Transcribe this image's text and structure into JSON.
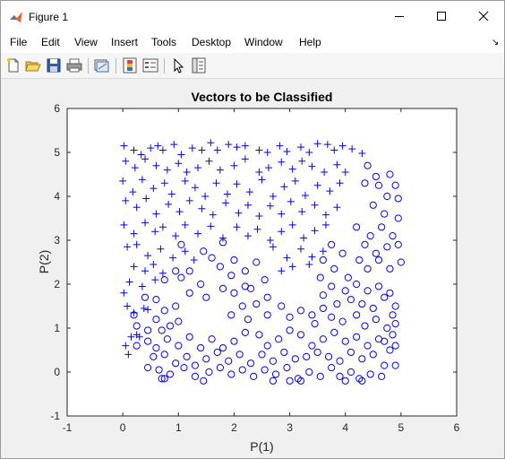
{
  "window": {
    "title": "Figure 1"
  },
  "menu": [
    "File",
    "Edit",
    "View",
    "Insert",
    "Tools",
    "Desktop",
    "Window",
    "Help"
  ],
  "toolbar_icons": [
    "new-figure-icon",
    "open-file-icon",
    "save-icon",
    "print-icon",
    "link-plot-icon",
    "insert-colorbar-icon",
    "insert-legend-icon",
    "select-arrow-icon",
    "property-inspector-icon"
  ],
  "chart_data": {
    "type": "scatter",
    "title": "Vectors to be Classified",
    "xlabel": "P(1)",
    "ylabel": "P(2)",
    "xlim": [
      -1,
      6
    ],
    "ylim": [
      -1,
      6
    ],
    "xticks": [
      "-1",
      "0",
      "1",
      "2",
      "3",
      "4",
      "5",
      "6"
    ],
    "yticks": [
      "-1",
      "0",
      "1",
      "2",
      "3",
      "4",
      "5",
      "6"
    ],
    "grid": false,
    "marker_color": "#0000ff",
    "series": [
      {
        "marker": "plus",
        "points": [
          [
            0.02,
            5.15
          ],
          [
            0.2,
            5.05
          ],
          [
            0.33,
            4.95
          ],
          [
            0.5,
            5.1
          ],
          [
            0.63,
            5.15
          ],
          [
            0.72,
            5.05
          ],
          [
            0.92,
            5.18
          ],
          [
            1.05,
            4.95
          ],
          [
            1.25,
            5.1
          ],
          [
            1.42,
            5.05
          ],
          [
            1.58,
            5.22
          ],
          [
            1.7,
            5.05
          ],
          [
            1.9,
            5.18
          ],
          [
            2.05,
            5.12
          ],
          [
            2.2,
            5.15
          ],
          [
            2.45,
            5.05
          ],
          [
            2.6,
            5.0
          ],
          [
            2.82,
            5.15
          ],
          [
            2.95,
            5.02
          ],
          [
            3.2,
            5.12
          ],
          [
            3.35,
            5.0
          ],
          [
            3.5,
            5.2
          ],
          [
            3.68,
            5.18
          ],
          [
            3.8,
            5.05
          ],
          [
            3.95,
            5.15
          ],
          [
            4.12,
            5.08
          ],
          [
            4.3,
            4.98
          ],
          [
            0.05,
            4.8
          ],
          [
            0.22,
            4.65
          ],
          [
            0.4,
            4.85
          ],
          [
            0.6,
            4.7
          ],
          [
            0.8,
            4.6
          ],
          [
            1.0,
            4.75
          ],
          [
            1.15,
            4.55
          ],
          [
            1.35,
            4.65
          ],
          [
            1.55,
            4.8
          ],
          [
            1.75,
            4.6
          ],
          [
            2.0,
            4.7
          ],
          [
            2.2,
            4.85
          ],
          [
            2.45,
            4.55
          ],
          [
            2.62,
            4.65
          ],
          [
            2.85,
            4.78
          ],
          [
            3.05,
            4.62
          ],
          [
            3.22,
            4.8
          ],
          [
            3.4,
            4.68
          ],
          [
            3.62,
            4.55
          ],
          [
            3.85,
            4.72
          ],
          [
            4.0,
            4.55
          ],
          [
            0.0,
            4.35
          ],
          [
            0.18,
            4.1
          ],
          [
            0.35,
            4.38
          ],
          [
            0.55,
            4.18
          ],
          [
            0.75,
            4.3
          ],
          [
            0.88,
            4.05
          ],
          [
            1.12,
            4.35
          ],
          [
            1.3,
            4.2
          ],
          [
            1.48,
            4.0
          ],
          [
            1.68,
            4.3
          ],
          [
            1.88,
            4.05
          ],
          [
            2.05,
            4.28
          ],
          [
            2.28,
            4.1
          ],
          [
            2.5,
            4.38
          ],
          [
            2.7,
            4.0
          ],
          [
            2.9,
            4.22
          ],
          [
            3.1,
            4.35
          ],
          [
            3.28,
            4.02
          ],
          [
            3.5,
            4.25
          ],
          [
            3.72,
            4.12
          ],
          [
            3.9,
            4.3
          ],
          [
            0.05,
            3.9
          ],
          [
            0.25,
            3.75
          ],
          [
            0.42,
            3.95
          ],
          [
            0.6,
            3.6
          ],
          [
            0.82,
            3.82
          ],
          [
            1.02,
            3.65
          ],
          [
            1.2,
            3.9
          ],
          [
            1.42,
            3.72
          ],
          [
            1.62,
            3.58
          ],
          [
            1.85,
            3.85
          ],
          [
            2.08,
            3.62
          ],
          [
            2.25,
            3.8
          ],
          [
            2.45,
            3.55
          ],
          [
            2.65,
            3.78
          ],
          [
            2.85,
            3.6
          ],
          [
            3.02,
            3.88
          ],
          [
            3.22,
            3.65
          ],
          [
            3.45,
            3.8
          ],
          [
            3.65,
            3.58
          ],
          [
            3.85,
            3.75
          ],
          [
            0.02,
            3.35
          ],
          [
            0.2,
            3.15
          ],
          [
            0.4,
            3.4
          ],
          [
            0.58,
            3.2
          ],
          [
            0.72,
            3.3
          ],
          [
            0.95,
            3.1
          ],
          [
            1.12,
            3.35
          ],
          [
            1.35,
            3.15
          ],
          [
            1.58,
            3.32
          ],
          [
            1.8,
            3.05
          ],
          [
            2.05,
            3.3
          ],
          [
            2.25,
            3.1
          ],
          [
            2.42,
            3.25
          ],
          [
            2.65,
            3.0
          ],
          [
            2.85,
            3.2
          ],
          [
            3.05,
            3.35
          ],
          [
            3.25,
            3.05
          ],
          [
            3.45,
            3.22
          ],
          [
            3.65,
            3.35
          ],
          [
            0.08,
            2.85
          ],
          [
            0.25,
            2.9
          ],
          [
            0.45,
            2.65
          ],
          [
            0.68,
            2.8
          ],
          [
            0.9,
            2.6
          ],
          [
            1.12,
            2.75
          ],
          [
            1.28,
            2.55
          ],
          [
            2.7,
            2.85
          ],
          [
            2.95,
            2.6
          ],
          [
            3.2,
            2.8
          ],
          [
            3.4,
            2.62
          ],
          [
            3.6,
            2.75
          ],
          [
            0.2,
            2.4
          ],
          [
            0.4,
            2.3
          ],
          [
            0.55,
            2.45
          ],
          [
            0.72,
            2.25
          ],
          [
            2.85,
            2.3
          ],
          [
            3.05,
            2.4
          ],
          [
            3.35,
            2.45
          ],
          [
            0.02,
            1.8
          ],
          [
            0.12,
            2.05
          ],
          [
            0.35,
            1.95
          ],
          [
            0.58,
            2.1
          ],
          [
            0.08,
            1.5
          ],
          [
            0.2,
            1.35
          ],
          [
            0.38,
            1.45
          ],
          [
            0.45,
            1.42
          ],
          [
            0.05,
            0.6
          ],
          [
            0.1,
            0.4
          ],
          [
            0.15,
            0.8
          ],
          [
            0.25,
            0.85
          ],
          [
            0.3,
            0.8
          ]
        ]
      },
      {
        "marker": "circle",
        "points": [
          [
            4.4,
            4.7
          ],
          [
            4.55,
            4.45
          ],
          [
            4.8,
            4.5
          ],
          [
            4.6,
            4.25
          ],
          [
            4.75,
            4.0
          ],
          [
            4.35,
            4.3
          ],
          [
            4.9,
            4.25
          ],
          [
            4.95,
            3.95
          ],
          [
            4.5,
            3.8
          ],
          [
            4.7,
            3.6
          ],
          [
            4.95,
            3.5
          ],
          [
            4.2,
            3.3
          ],
          [
            4.45,
            3.1
          ],
          [
            4.65,
            3.3
          ],
          [
            4.85,
            3.1
          ],
          [
            4.35,
            2.9
          ],
          [
            4.55,
            2.7
          ],
          [
            4.75,
            2.85
          ],
          [
            4.95,
            2.9
          ],
          [
            4.25,
            2.55
          ],
          [
            4.4,
            2.35
          ],
          [
            4.6,
            2.55
          ],
          [
            4.8,
            2.35
          ],
          [
            5.0,
            2.5
          ],
          [
            3.75,
            2.9
          ],
          [
            3.95,
            2.7
          ],
          [
            3.6,
            2.55
          ],
          [
            3.8,
            2.35
          ],
          [
            4.05,
            2.15
          ],
          [
            3.55,
            2.15
          ],
          [
            3.75,
            1.95
          ],
          [
            4.0,
            1.85
          ],
          [
            4.2,
            2.0
          ],
          [
            4.4,
            1.85
          ],
          [
            4.6,
            1.95
          ],
          [
            4.8,
            1.8
          ],
          [
            3.6,
            1.75
          ],
          [
            3.85,
            1.55
          ],
          [
            4.1,
            1.65
          ],
          [
            4.3,
            1.55
          ],
          [
            4.5,
            1.45
          ],
          [
            4.7,
            1.7
          ],
          [
            4.9,
            1.5
          ],
          [
            1.05,
            2.9
          ],
          [
            1.45,
            2.75
          ],
          [
            1.8,
            2.95
          ],
          [
            1.6,
            2.6
          ],
          [
            1.75,
            2.4
          ],
          [
            2.0,
            2.55
          ],
          [
            2.2,
            2.3
          ],
          [
            1.95,
            2.2
          ],
          [
            2.4,
            2.5
          ],
          [
            2.55,
            2.1
          ],
          [
            2.2,
            1.95
          ],
          [
            1.8,
            1.9
          ],
          [
            1.4,
            2.0
          ],
          [
            1.2,
            2.3
          ],
          [
            1.05,
            2.15
          ],
          [
            0.95,
            2.3
          ],
          [
            0.75,
            2.1
          ],
          [
            1.2,
            1.8
          ],
          [
            1.5,
            1.7
          ],
          [
            2.0,
            1.8
          ],
          [
            2.3,
            1.9
          ],
          [
            2.6,
            1.7
          ],
          [
            2.4,
            1.55
          ],
          [
            2.15,
            1.5
          ],
          [
            1.95,
            1.3
          ],
          [
            2.25,
            1.2
          ],
          [
            2.6,
            1.3
          ],
          [
            2.85,
            1.5
          ],
          [
            3.0,
            1.25
          ],
          [
            3.2,
            1.4
          ],
          [
            3.4,
            1.3
          ],
          [
            3.6,
            1.45
          ],
          [
            3.45,
            1.1
          ],
          [
            3.75,
            1.25
          ],
          [
            3.95,
            1.15
          ],
          [
            4.2,
            1.3
          ],
          [
            4.35,
            1.05
          ],
          [
            4.55,
            1.2
          ],
          [
            4.75,
            1.0
          ],
          [
            4.85,
            1.3
          ],
          [
            4.9,
            1.1
          ],
          [
            4.85,
            0.85
          ],
          [
            4.9,
            0.6
          ],
          [
            4.7,
            0.7
          ],
          [
            0.2,
            1.3
          ],
          [
            0.25,
            1.05
          ],
          [
            0.45,
            0.95
          ],
          [
            0.6,
            1.2
          ],
          [
            0.7,
            0.95
          ],
          [
            0.85,
            1.05
          ],
          [
            1.0,
            1.15
          ],
          [
            0.95,
            1.5
          ],
          [
            0.75,
            1.4
          ],
          [
            0.6,
            1.65
          ],
          [
            0.4,
            1.7
          ],
          [
            0.25,
            0.6
          ],
          [
            0.45,
            0.7
          ],
          [
            0.6,
            0.55
          ],
          [
            0.8,
            0.75
          ],
          [
            1.0,
            0.6
          ],
          [
            1.2,
            0.8
          ],
          [
            1.4,
            0.55
          ],
          [
            1.6,
            0.75
          ],
          [
            1.8,
            0.55
          ],
          [
            2.0,
            0.7
          ],
          [
            2.2,
            0.9
          ],
          [
            2.45,
            0.85
          ],
          [
            2.6,
            0.6
          ],
          [
            2.8,
            0.75
          ],
          [
            3.0,
            0.95
          ],
          [
            3.2,
            0.85
          ],
          [
            3.4,
            0.6
          ],
          [
            3.6,
            0.75
          ],
          [
            3.8,
            0.9
          ],
          [
            4.0,
            0.7
          ],
          [
            4.2,
            0.8
          ],
          [
            4.4,
            0.6
          ],
          [
            4.6,
            0.75
          ],
          [
            4.8,
            0.5
          ],
          [
            0.55,
            0.35
          ],
          [
            0.75,
            0.4
          ],
          [
            0.95,
            0.2
          ],
          [
            1.15,
            0.35
          ],
          [
            1.3,
            0.15
          ],
          [
            1.5,
            0.3
          ],
          [
            1.7,
            0.45
          ],
          [
            1.9,
            0.25
          ],
          [
            2.1,
            0.4
          ],
          [
            2.3,
            0.2
          ],
          [
            2.5,
            0.4
          ],
          [
            2.7,
            0.25
          ],
          [
            2.9,
            0.45
          ],
          [
            3.1,
            0.3
          ],
          [
            3.3,
            0.35
          ],
          [
            3.5,
            0.45
          ],
          [
            3.7,
            0.35
          ],
          [
            3.9,
            0.25
          ],
          [
            4.1,
            0.45
          ],
          [
            4.3,
            0.3
          ],
          [
            4.5,
            0.4
          ],
          [
            4.7,
            0.15
          ],
          [
            0.45,
            0.1
          ],
          [
            0.65,
            0.05
          ],
          [
            0.85,
            -0.05
          ],
          [
            1.1,
            0.1
          ],
          [
            1.3,
            -0.1
          ],
          [
            1.55,
            0.0
          ],
          [
            1.75,
            0.1
          ],
          [
            1.95,
            -0.05
          ],
          [
            2.15,
            0.05
          ],
          [
            2.35,
            -0.1
          ],
          [
            2.55,
            0.05
          ],
          [
            2.75,
            -0.05
          ],
          [
            2.95,
            0.1
          ],
          [
            3.15,
            -0.15
          ],
          [
            3.35,
            0.0
          ],
          [
            3.55,
            -0.1
          ],
          [
            3.75,
            0.1
          ],
          [
            3.9,
            -0.1
          ],
          [
            4.1,
            0.0
          ],
          [
            4.25,
            -0.15
          ],
          [
            4.45,
            -0.05
          ],
          [
            4.65,
            -0.1
          ],
          [
            4.9,
            0.15
          ],
          [
            0.7,
            -0.15
          ],
          [
            0.75,
            -0.15
          ],
          [
            1.45,
            -0.2
          ],
          [
            2.7,
            -0.2
          ],
          [
            3.0,
            -0.2
          ],
          [
            3.2,
            -0.2
          ],
          [
            4.3,
            -0.2
          ],
          [
            4.0,
            -0.2
          ]
        ]
      }
    ]
  }
}
